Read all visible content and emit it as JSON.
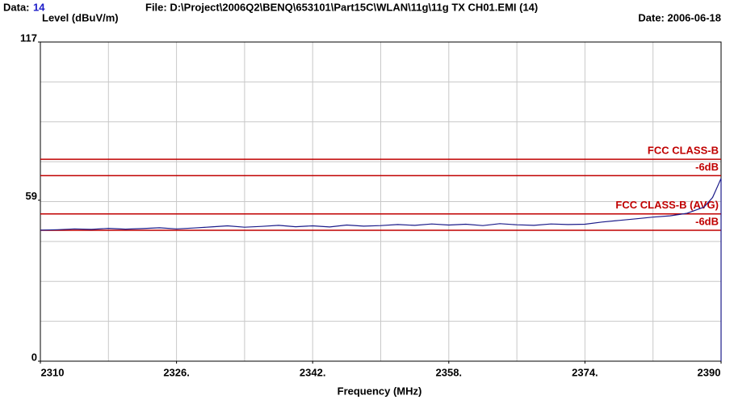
{
  "chart_data": {
    "type": "line",
    "data_label": "Data:",
    "data_number": "14",
    "file": "File: D:\\Project\\2006Q2\\BENQ\\653101\\Part15C\\WLAN\\11g\\11g TX CH01.EMI  (14)",
    "date": "Date: 2006-06-18",
    "y_label": "Level (dBuV/m)",
    "x_label": "Frequency (MHz)",
    "xlim": [
      2310,
      2390
    ],
    "xticks": [
      2310,
      {
        "value": 2326,
        "label": "2326."
      },
      {
        "value": 2342,
        "label": "2342."
      },
      {
        "value": 2358,
        "label": "2358."
      },
      {
        "value": 2374,
        "label": "2374."
      },
      2390
    ],
    "xgrid": [
      2318,
      2326,
      2334,
      2342,
      2350,
      2358,
      2366,
      2374,
      2382
    ],
    "ylim": [
      0,
      117
    ],
    "yticks": [
      0,
      59,
      117
    ],
    "ygrid": [
      14.625,
      29.25,
      43.875,
      58.5,
      73.125,
      87.75,
      102.375
    ],
    "grid": true,
    "limits": [
      {
        "name": "FCC CLASS-B",
        "value": 74,
        "color": "#c00000"
      },
      {
        "name": "-6dB",
        "value": 68,
        "color": "#c00000"
      },
      {
        "name": "FCC CLASS-B (AVG)",
        "value": 54,
        "color": "#c00000"
      },
      {
        "name": "-6dB",
        "value": 48,
        "color": "#c00000"
      }
    ],
    "series": [
      {
        "color": "#1c1c8a",
        "x": [
          2310,
          2312,
          2314,
          2316,
          2318,
          2320,
          2322,
          2324,
          2326,
          2328,
          2330,
          2332,
          2334,
          2336,
          2338,
          2340,
          2342,
          2344,
          2346,
          2348,
          2350,
          2352,
          2354,
          2356,
          2358,
          2360,
          2362,
          2364,
          2366,
          2368,
          2370,
          2372,
          2374,
          2376,
          2378,
          2380,
          2382,
          2384,
          2386,
          2388,
          2389,
          2390,
          2390
        ],
        "values": [
          48,
          48.2,
          48.5,
          48.3,
          48.7,
          48.4,
          48.6,
          48.9,
          48.5,
          48.8,
          49.2,
          49.6,
          49.1,
          49.4,
          49.8,
          49.3,
          49.6,
          49.2,
          49.9,
          49.5,
          49.7,
          50.1,
          49.8,
          50.3,
          49.9,
          50.2,
          49.7,
          50.4,
          50,
          49.8,
          50.3,
          50.1,
          50.2,
          51,
          51.6,
          52.2,
          52.8,
          53.3,
          54.2,
          56.5,
          60,
          67,
          0
        ]
      }
    ]
  }
}
